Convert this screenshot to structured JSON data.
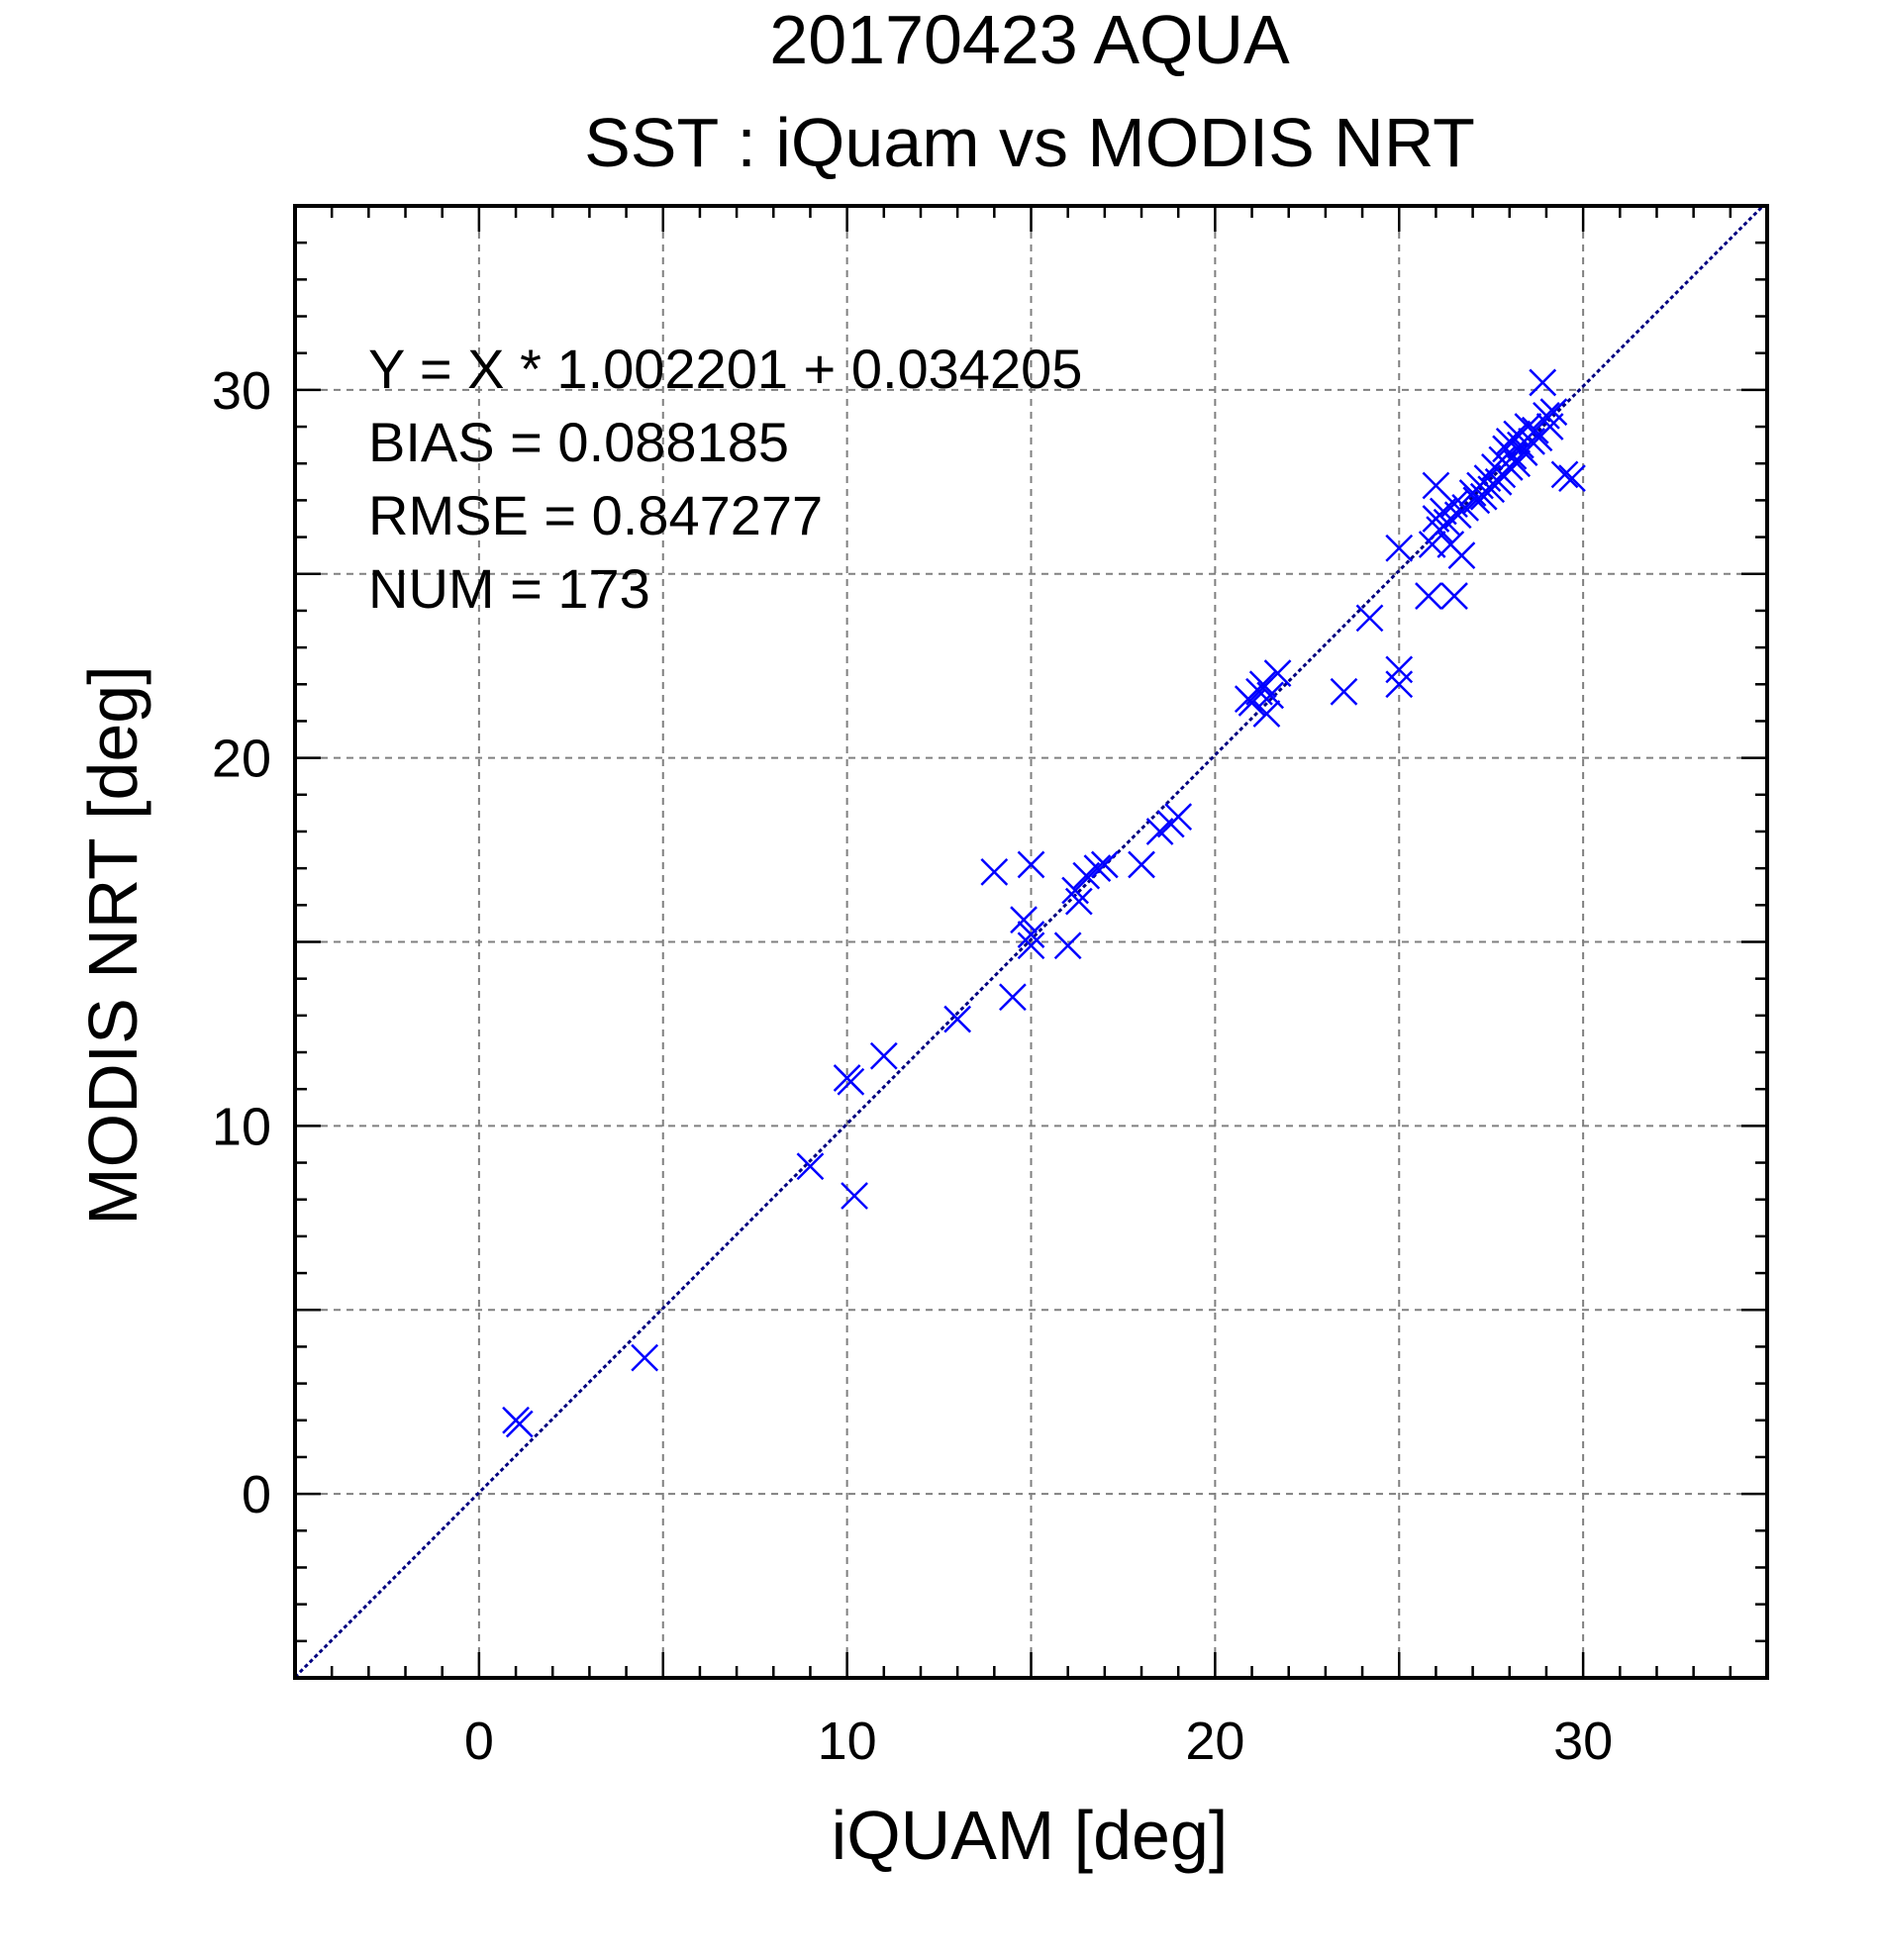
{
  "chart_data": {
    "type": "scatter",
    "title": "20170423 AQUA",
    "subtitle": "SST : iQuam vs MODIS NRT",
    "xlabel": "iQUAM [deg]",
    "ylabel": "MODIS NRT [deg]",
    "xlim": [
      -5,
      35
    ],
    "ylim": [
      -5,
      35
    ],
    "xticks": [
      "0",
      "10",
      "20",
      "30"
    ],
    "yticks": [
      "0",
      "10",
      "20",
      "30"
    ],
    "grid": true,
    "marker_color": "#0000ff",
    "line_color": "#000080",
    "stats": [
      "Y = X * 1.002201 + 0.034205",
      "BIAS = 0.088185",
      "RMSE = 0.847277",
      "NUM = 173"
    ],
    "fit": {
      "slope": 1.002201,
      "intercept": 0.034205
    },
    "points": [
      [
        1.0,
        2.0
      ],
      [
        1.1,
        1.9
      ],
      [
        4.5,
        3.7
      ],
      [
        9.0,
        8.9
      ],
      [
        10.0,
        11.3
      ],
      [
        10.1,
        11.2
      ],
      [
        10.2,
        8.1
      ],
      [
        11.0,
        11.9
      ],
      [
        13.0,
        12.9
      ],
      [
        14.0,
        16.9
      ],
      [
        14.5,
        13.5
      ],
      [
        14.8,
        15.6
      ],
      [
        15.0,
        17.1
      ],
      [
        15.0,
        15.2
      ],
      [
        15.0,
        14.9
      ],
      [
        16.0,
        14.9
      ],
      [
        16.2,
        16.4
      ],
      [
        16.3,
        16.1
      ],
      [
        16.5,
        16.8
      ],
      [
        16.8,
        17.0
      ],
      [
        17.0,
        17.1
      ],
      [
        18.0,
        17.1
      ],
      [
        18.5,
        18.0
      ],
      [
        18.8,
        18.2
      ],
      [
        19.0,
        18.4
      ],
      [
        20.9,
        21.6
      ],
      [
        21.0,
        21.5
      ],
      [
        21.2,
        21.8
      ],
      [
        21.3,
        22.0
      ],
      [
        21.4,
        21.2
      ],
      [
        21.5,
        21.7
      ],
      [
        21.7,
        22.3
      ],
      [
        23.5,
        21.8
      ],
      [
        24.2,
        23.8
      ],
      [
        25.0,
        25.7
      ],
      [
        25.0,
        22.0
      ],
      [
        25.0,
        22.4
      ],
      [
        25.8,
        24.4
      ],
      [
        25.9,
        25.8
      ],
      [
        26.0,
        27.4
      ],
      [
        26.0,
        26.5
      ],
      [
        26.1,
        26.2
      ],
      [
        26.2,
        26.7
      ],
      [
        26.3,
        26.4
      ],
      [
        26.4,
        25.8
      ],
      [
        26.5,
        26.9
      ],
      [
        26.5,
        24.4
      ],
      [
        26.6,
        26.6
      ],
      [
        26.7,
        25.5
      ],
      [
        26.8,
        26.8
      ],
      [
        27.0,
        27.2
      ],
      [
        27.1,
        27.0
      ],
      [
        27.2,
        27.4
      ],
      [
        27.3,
        27.1
      ],
      [
        27.4,
        27.6
      ],
      [
        27.5,
        27.3
      ],
      [
        27.6,
        27.9
      ],
      [
        27.7,
        27.5
      ],
      [
        27.8,
        28.1
      ],
      [
        27.8,
        27.7
      ],
      [
        27.9,
        28.4
      ],
      [
        28.0,
        27.9
      ],
      [
        28.0,
        28.6
      ],
      [
        28.1,
        28.2
      ],
      [
        28.2,
        28.8
      ],
      [
        28.2,
        28.0
      ],
      [
        28.3,
        28.5
      ],
      [
        28.4,
        28.3
      ],
      [
        28.5,
        29.0
      ],
      [
        28.6,
        28.6
      ],
      [
        28.7,
        28.9
      ],
      [
        28.8,
        28.7
      ],
      [
        28.9,
        30.2
      ],
      [
        29.0,
        29.3
      ],
      [
        29.1,
        29.0
      ],
      [
        29.2,
        29.4
      ],
      [
        29.5,
        27.7
      ],
      [
        29.7,
        27.6
      ]
    ]
  }
}
